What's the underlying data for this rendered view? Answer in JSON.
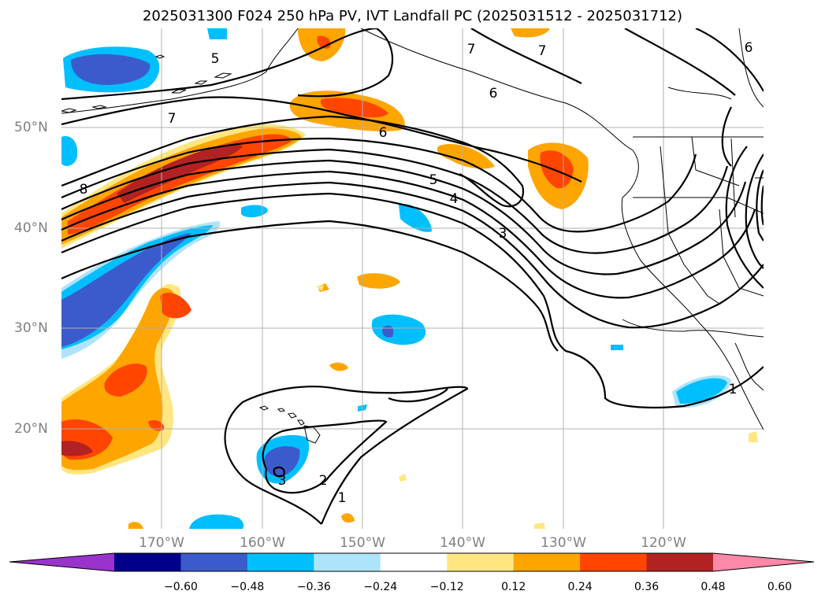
{
  "title": "2025031300 F024 250 hPa PV, IVT Landfall PC (2025031512 - 2025031712)",
  "axes": {
    "lat_labels": [
      "50°N",
      "40°N",
      "30°N",
      "20°N"
    ],
    "lon_labels": [
      "170°W",
      "160°W",
      "150°W",
      "140°W",
      "130°W",
      "120°W"
    ]
  },
  "contour_labels": [
    "5",
    "7",
    "6",
    "7",
    "7",
    "6",
    "5",
    "4",
    "3",
    "2",
    "1",
    "3",
    "1",
    "6",
    "8"
  ],
  "colorbar": {
    "ticks": [
      "−0.60",
      "−0.48",
      "−0.36",
      "−0.24",
      "−0.12",
      "0.12",
      "0.24",
      "0.36",
      "0.48",
      "0.60"
    ],
    "colors": [
      "#9933cc",
      "#00008b",
      "#3b5bcc",
      "#00bfff",
      "#aee4fb",
      "#ffffff",
      "#ffe680",
      "#ffa500",
      "#ff4500",
      "#b22222",
      "#ff88aa"
    ]
  },
  "colors": {
    "neg_strong": "#3b5bcc",
    "neg_mid": "#00bfff",
    "neg_weak": "#aee4fb",
    "pos_weak": "#ffe680",
    "pos_mid": "#ffa500",
    "pos_strong": "#ff4500",
    "pos_max": "#b22222"
  }
}
